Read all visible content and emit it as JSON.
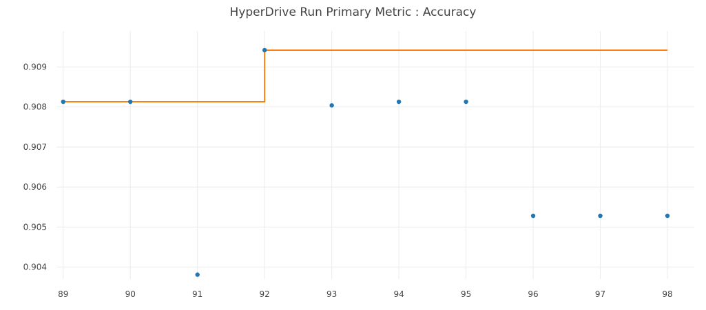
{
  "chart_data": {
    "type": "scatter",
    "title": "HyperDrive Run Primary Metric : Accuracy",
    "xlabel": "",
    "ylabel": "",
    "xlim": [
      88.9,
      98.4
    ],
    "ylim": [
      0.9037,
      0.9099
    ],
    "x_ticks": [
      89,
      90,
      91,
      92,
      93,
      94,
      95,
      96,
      97,
      98
    ],
    "y_ticks": [
      0.904,
      0.905,
      0.906,
      0.907,
      0.908,
      0.909
    ],
    "grid": true,
    "legend": "none",
    "series": [
      {
        "kind": "scatter",
        "color": "#1f77b4",
        "x": [
          89,
          90,
          91,
          92,
          93,
          94,
          95,
          96,
          97,
          98
        ],
        "y": [
          0.90813,
          0.90813,
          0.90381,
          0.90942,
          0.90804,
          0.90813,
          0.90813,
          0.90528,
          0.90528,
          0.90528
        ]
      },
      {
        "kind": "step-line",
        "color": "#ff7f0e",
        "x": [
          89,
          90,
          91,
          92,
          93,
          94,
          95,
          96,
          97,
          98
        ],
        "y": [
          0.90813,
          0.90813,
          0.90813,
          0.90942,
          0.90942,
          0.90942,
          0.90942,
          0.90942,
          0.90942,
          0.90942
        ]
      }
    ]
  }
}
